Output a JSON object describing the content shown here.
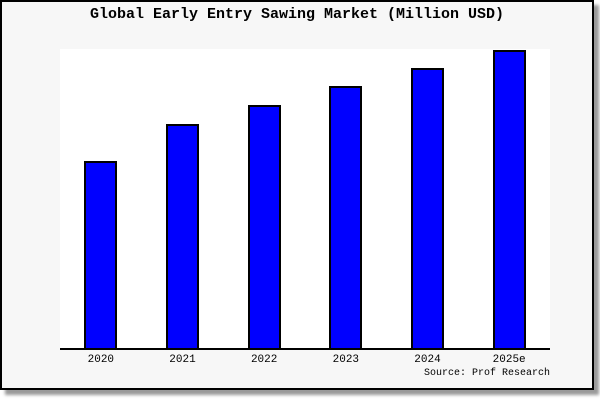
{
  "title": "Global Early Entry Sawing Market (Million USD)",
  "source_note": "Source: Prof Research",
  "colors": {
    "bar_fill": "#0000ff",
    "bar_border": "#000000",
    "canvas_background": "#f7f7f7",
    "plot_background": "#ffffff",
    "axis_line": "#000000",
    "frame_border": "#000000",
    "shadow": "#9a9a9a",
    "text": "#000000"
  },
  "chart_data": {
    "type": "bar",
    "title": "Global Early Entry Sawing Market (Million USD)",
    "categories": [
      "2020",
      "2021",
      "2022",
      "2023",
      "2024",
      "2025e"
    ],
    "values": [
      187,
      224,
      243,
      262,
      280,
      298
    ],
    "value_units": "relative (no y-axis scale shown in chart)",
    "xlabel": "",
    "ylabel": "",
    "ylim": [
      0,
      301
    ],
    "grid": false,
    "legend_position": "none",
    "annotations": [
      "Source: Prof Research"
    ]
  }
}
